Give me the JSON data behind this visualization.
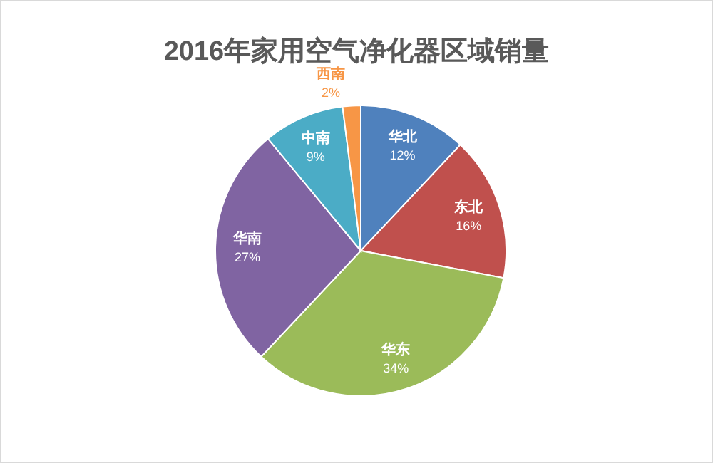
{
  "chart_data": {
    "type": "pie",
    "title": "2016年家用空气净化器区域销量",
    "categories": [
      "华北",
      "东北",
      "华东",
      "华南",
      "中南",
      "西南"
    ],
    "values": [
      12,
      16,
      34,
      27,
      9,
      2
    ],
    "colors": [
      "#4f81bd",
      "#c0504d",
      "#9bbb59",
      "#8064a2",
      "#4bacc6",
      "#f79646"
    ],
    "value_labels": [
      "12%",
      "16%",
      "34%",
      "27%",
      "9%",
      "2%"
    ]
  }
}
